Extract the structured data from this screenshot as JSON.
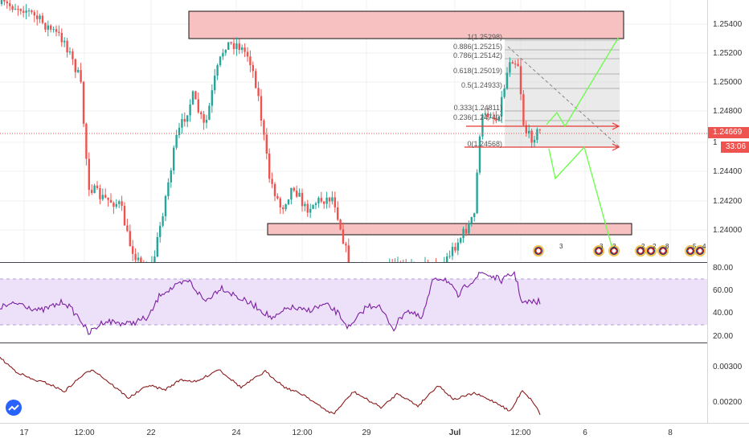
{
  "price_axis": {
    "ticks": [
      "1.25400",
      "1.25200",
      "1.25000",
      "1.24800",
      "1.24400",
      "1.24200",
      "1.24000"
    ],
    "last_price": "1.24669",
    "countdown": "33:06",
    "partial_label": "1"
  },
  "rsi_axis": {
    "ticks": [
      "80.00",
      "60.00",
      "40.00",
      "20.00"
    ]
  },
  "atr_axis": {
    "ticks": [
      "0.00300",
      "0.00200"
    ]
  },
  "time_axis": {
    "labels": [
      "17",
      "12:00",
      "22",
      "24",
      "12:00",
      "29",
      "Jul",
      "12:00",
      "6",
      "8"
    ]
  },
  "fib": {
    "levels": [
      {
        "ratio": "1",
        "price": "(1.25298)"
      },
      {
        "ratio": "0.886",
        "price": "(1.25215)"
      },
      {
        "ratio": "0.786",
        "price": "(1.25142)"
      },
      {
        "ratio": "0.618",
        "price": "(1.25019)"
      },
      {
        "ratio": "0.5",
        "price": "(1.24933)"
      },
      {
        "ratio": "0.333",
        "price": "(1.24811)"
      },
      {
        "ratio": "0.236",
        "price": "(1.24740)"
      },
      {
        "ratio": "0",
        "price": "(1.24568)"
      }
    ]
  },
  "events": [
    {
      "count": "3"
    },
    {
      "count": "3"
    },
    {
      "count": "2"
    },
    {
      "count": "2"
    },
    {
      "count": "2"
    },
    {
      "count": "8"
    },
    {
      "count": "5"
    },
    {
      "count": "4"
    }
  ],
  "colors": {
    "up": "#26a69a",
    "down": "#ef5350",
    "zone_fill": "#f7b6b6",
    "rsi_line": "#7b1fa2",
    "rsi_band": "#e8d9f7",
    "atr_line": "#8b1a1a",
    "projection": "#66ff44",
    "last_price": "#ef5350"
  },
  "icons": {
    "logo": "tradingview-logo-icon",
    "flag": "country-flag-icon"
  }
}
